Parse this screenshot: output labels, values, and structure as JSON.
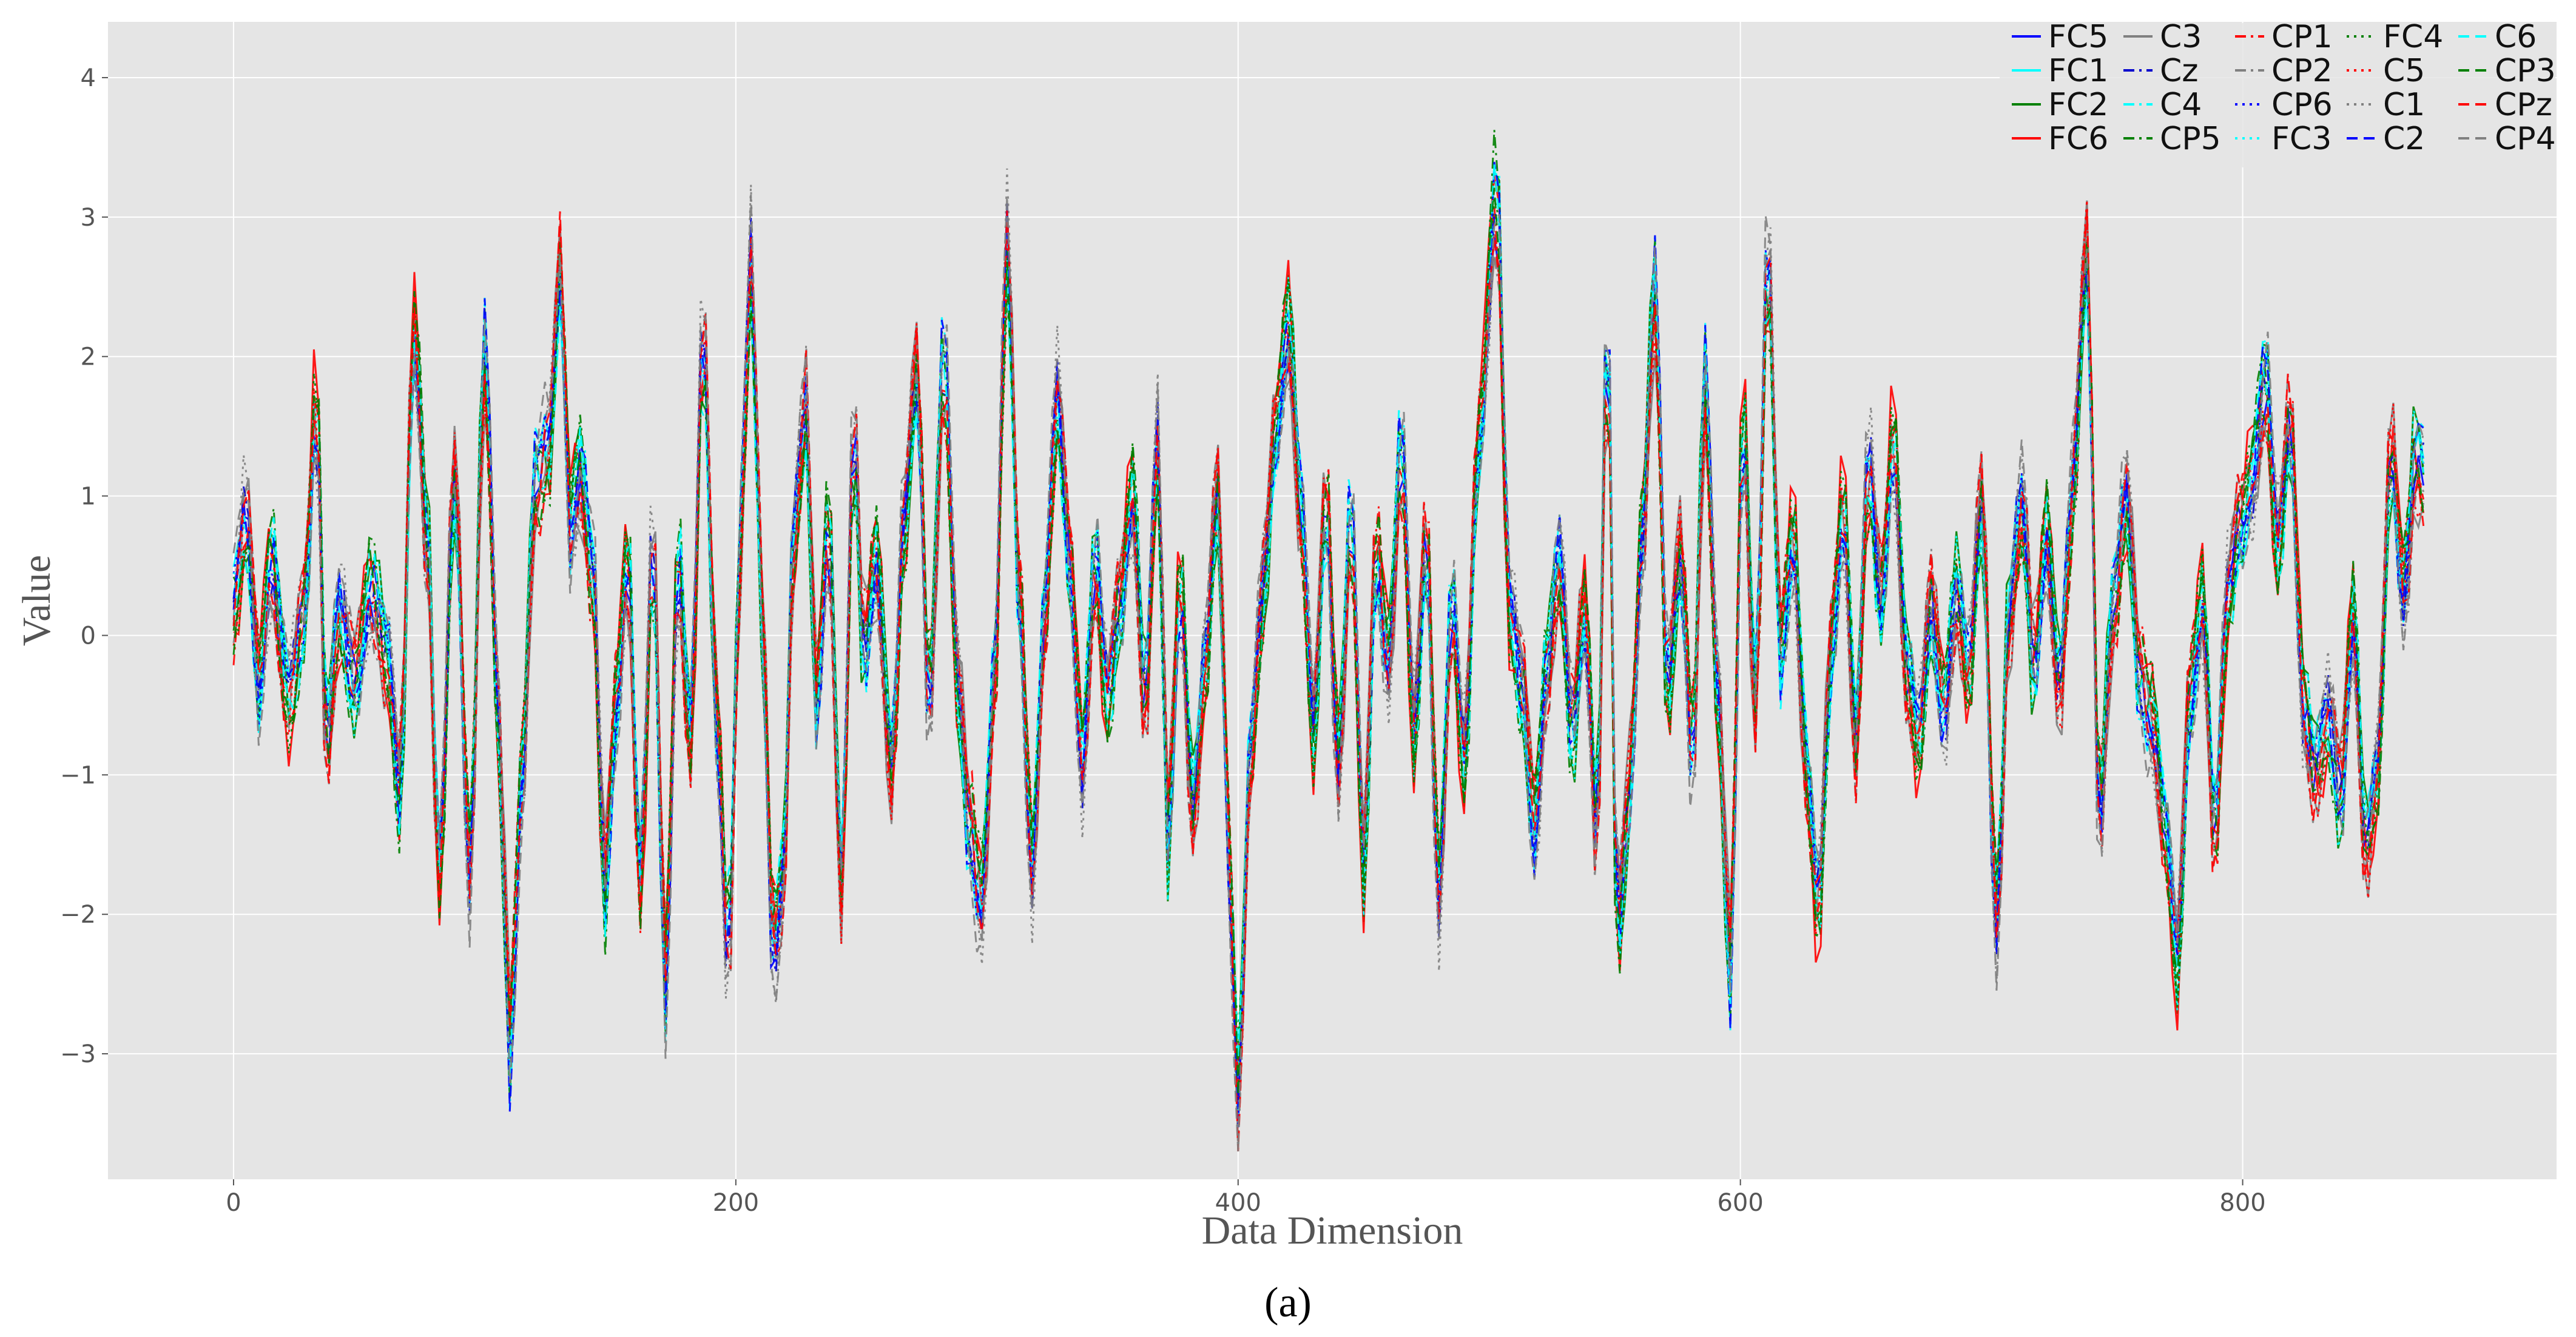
{
  "chart_data": {
    "type": "line",
    "title": "",
    "xlabel": "Data Dimension",
    "ylabel": "Value",
    "caption": "(a)",
    "xlim": [
      -50,
      925
    ],
    "ylim": [
      -3.9,
      4.4
    ],
    "xticks": [
      0,
      200,
      400,
      600,
      800
    ],
    "yticks": [
      -3,
      -2,
      -1,
      0,
      1,
      2,
      3,
      4
    ],
    "xtick_labels": [
      "0",
      "200",
      "400",
      "600",
      "800"
    ],
    "ytick_labels": [
      "−3",
      "−2",
      "−1",
      "0",
      "1",
      "2",
      "3",
      "4"
    ],
    "grid": true,
    "background": "#e5e5e5",
    "legend_position": "top-right",
    "legend_columns": 5,
    "x_extent": [
      0,
      873
    ],
    "series": [
      {
        "name": "FC5",
        "color": "#0000ff",
        "dash": "solid"
      },
      {
        "name": "FC1",
        "color": "#00ffff",
        "dash": "solid"
      },
      {
        "name": "FC2",
        "color": "#008000",
        "dash": "solid"
      },
      {
        "name": "FC6",
        "color": "#ff0000",
        "dash": "solid"
      },
      {
        "name": "C3",
        "color": "#808080",
        "dash": "solid"
      },
      {
        "name": "Cz",
        "color": "#0000cd",
        "dash": "dashdot"
      },
      {
        "name": "C4",
        "color": "#00ffff",
        "dash": "dashdot"
      },
      {
        "name": "CP5",
        "color": "#008000",
        "dash": "dashdot"
      },
      {
        "name": "CP1",
        "color": "#ff0000",
        "dash": "dashdot"
      },
      {
        "name": "CP2",
        "color": "#808080",
        "dash": "dashdot"
      },
      {
        "name": "CP6",
        "color": "#0000ff",
        "dash": "dotted"
      },
      {
        "name": "FC3",
        "color": "#00ffff",
        "dash": "dotted"
      },
      {
        "name": "FC4",
        "color": "#008000",
        "dash": "dotted"
      },
      {
        "name": "C5",
        "color": "#ff0000",
        "dash": "dotted"
      },
      {
        "name": "C1",
        "color": "#808080",
        "dash": "dotted"
      },
      {
        "name": "C2",
        "color": "#0000ff",
        "dash": "dashed"
      },
      {
        "name": "C6",
        "color": "#00ffff",
        "dash": "dashed"
      },
      {
        "name": "CP3",
        "color": "#008000",
        "dash": "dashed"
      },
      {
        "name": "CPz",
        "color": "#ff0000",
        "dash": "dashed"
      },
      {
        "name": "CP4",
        "color": "#808080",
        "dash": "dashed"
      }
    ],
    "common_profile": [
      [
        0,
        0.2
      ],
      [
        5,
        0.9
      ],
      [
        10,
        -0.4
      ],
      [
        15,
        0.6
      ],
      [
        22,
        -0.5
      ],
      [
        28,
        0.1
      ],
      [
        33,
        1.8
      ],
      [
        37,
        -0.8
      ],
      [
        42,
        0.2
      ],
      [
        48,
        -0.4
      ],
      [
        55,
        0.4
      ],
      [
        62,
        -0.2
      ],
      [
        66,
        -1.3
      ],
      [
        72,
        2.3
      ],
      [
        77,
        0.8
      ],
      [
        82,
        -1.8
      ],
      [
        88,
        1.2
      ],
      [
        94,
        -1.8
      ],
      [
        100,
        2.2
      ],
      [
        106,
        -0.9
      ],
      [
        110,
        -3.2
      ],
      [
        115,
        -1.0
      ],
      [
        120,
        1.2
      ],
      [
        126,
        1.4
      ],
      [
        130,
        2.8
      ],
      [
        134,
        0.8
      ],
      [
        138,
        1.3
      ],
      [
        143,
        0.5
      ],
      [
        148,
        -2.0
      ],
      [
        152,
        -0.6
      ],
      [
        157,
        0.6
      ],
      [
        162,
        -1.9
      ],
      [
        167,
        0.7
      ],
      [
        172,
        -2.7
      ],
      [
        177,
        0.6
      ],
      [
        182,
        -0.8
      ],
      [
        187,
        2.3
      ],
      [
        192,
        -0.5
      ],
      [
        197,
        -2.4
      ],
      [
        202,
        0.8
      ],
      [
        206,
        2.9
      ],
      [
        210,
        0.3
      ],
      [
        215,
        -2.4
      ],
      [
        219,
        -1.8
      ],
      [
        223,
        0.8
      ],
      [
        228,
        1.7
      ],
      [
        232,
        -0.6
      ],
      [
        237,
        0.9
      ],
      [
        242,
        -1.9
      ],
      [
        247,
        1.5
      ],
      [
        251,
        -0.2
      ],
      [
        256,
        0.6
      ],
      [
        262,
        -1.0
      ],
      [
        267,
        0.8
      ],
      [
        272,
        2.0
      ],
      [
        277,
        -0.5
      ],
      [
        283,
        2.2
      ],
      [
        288,
        -0.3
      ],
      [
        293,
        -1.5
      ],
      [
        298,
        -2.0
      ],
      [
        303,
        -0.3
      ],
      [
        308,
        3.0
      ],
      [
        313,
        0.2
      ],
      [
        318,
        -1.8
      ],
      [
        323,
        0.2
      ],
      [
        328,
        1.8
      ],
      [
        333,
        0.5
      ],
      [
        338,
        -1.0
      ],
      [
        343,
        0.6
      ],
      [
        348,
        -0.5
      ],
      [
        353,
        0.2
      ],
      [
        358,
        1.1
      ],
      [
        363,
        -0.5
      ],
      [
        368,
        1.5
      ],
      [
        372,
        -1.6
      ],
      [
        377,
        0.4
      ],
      [
        382,
        -1.3
      ],
      [
        387,
        -0.2
      ],
      [
        392,
        1.1
      ],
      [
        396,
        -1.5
      ],
      [
        400,
        -3.5
      ],
      [
        405,
        -0.8
      ],
      [
        410,
        0.3
      ],
      [
        415,
        1.5
      ],
      [
        420,
        2.4
      ],
      [
        425,
        1.0
      ],
      [
        430,
        -0.8
      ],
      [
        435,
        1.0
      ],
      [
        440,
        -1.0
      ],
      [
        445,
        1.0
      ],
      [
        450,
        -1.8
      ],
      [
        455,
        0.6
      ],
      [
        460,
        -0.2
      ],
      [
        465,
        1.5
      ],
      [
        470,
        -0.8
      ],
      [
        475,
        0.7
      ],
      [
        480,
        -2.0
      ],
      [
        485,
        0.3
      ],
      [
        490,
        -1.0
      ],
      [
        496,
        1.5
      ],
      [
        503,
        3.4
      ],
      [
        508,
        0.2
      ],
      [
        513,
        -0.4
      ],
      [
        518,
        -1.5
      ],
      [
        523,
        -0.2
      ],
      [
        528,
        0.6
      ],
      [
        533,
        -0.8
      ],
      [
        538,
        0.2
      ],
      [
        543,
        -1.5
      ],
      [
        547,
        2.5
      ],
      [
        551,
        -2.3
      ],
      [
        556,
        -1.2
      ],
      [
        561,
        0.8
      ],
      [
        566,
        2.7
      ],
      [
        571,
        -0.5
      ],
      [
        576,
        0.6
      ],
      [
        581,
        -0.9
      ],
      [
        586,
        2.0
      ],
      [
        591,
        -0.5
      ],
      [
        596,
        -2.6
      ],
      [
        601,
        1.7
      ],
      [
        606,
        -0.5
      ],
      [
        611,
        2.9
      ],
      [
        616,
        -0.2
      ],
      [
        621,
        0.8
      ],
      [
        626,
        -0.9
      ],
      [
        631,
        -2.1
      ],
      [
        636,
        -0.2
      ],
      [
        641,
        1.0
      ],
      [
        646,
        -0.8
      ],
      [
        651,
        1.3
      ],
      [
        656,
        0.2
      ],
      [
        661,
        1.5
      ],
      [
        666,
        -0.2
      ],
      [
        671,
        -0.8
      ],
      [
        676,
        0.2
      ],
      [
        681,
        -0.6
      ],
      [
        686,
        0.4
      ],
      [
        691,
        -0.3
      ],
      [
        696,
        1.0
      ],
      [
        702,
        -2.2
      ],
      [
        707,
        0.2
      ],
      [
        712,
        1.0
      ],
      [
        717,
        -0.3
      ],
      [
        722,
        0.8
      ],
      [
        727,
        -0.4
      ],
      [
        732,
        1.0
      ],
      [
        738,
        2.9
      ],
      [
        743,
        -1.4
      ],
      [
        748,
        0.2
      ],
      [
        754,
        1.0
      ],
      [
        759,
        -0.4
      ],
      [
        764,
        -0.6
      ],
      [
        769,
        -1.4
      ],
      [
        774,
        -2.5
      ],
      [
        779,
        -0.5
      ],
      [
        784,
        0.3
      ],
      [
        789,
        -1.5
      ],
      [
        794,
        0.3
      ],
      [
        799,
        0.8
      ],
      [
        804,
        1.2
      ],
      [
        809,
        2.0
      ],
      [
        814,
        0.6
      ],
      [
        819,
        1.6
      ],
      [
        824,
        -0.5
      ],
      [
        829,
        -1.0
      ],
      [
        834,
        -0.6
      ],
      [
        839,
        -1.3
      ],
      [
        844,
        0.2
      ],
      [
        849,
        -1.6
      ],
      [
        854,
        -1.0
      ],
      [
        859,
        1.4
      ],
      [
        864,
        0.3
      ],
      [
        869,
        1.4
      ],
      [
        873,
        1.2
      ]
    ]
  }
}
